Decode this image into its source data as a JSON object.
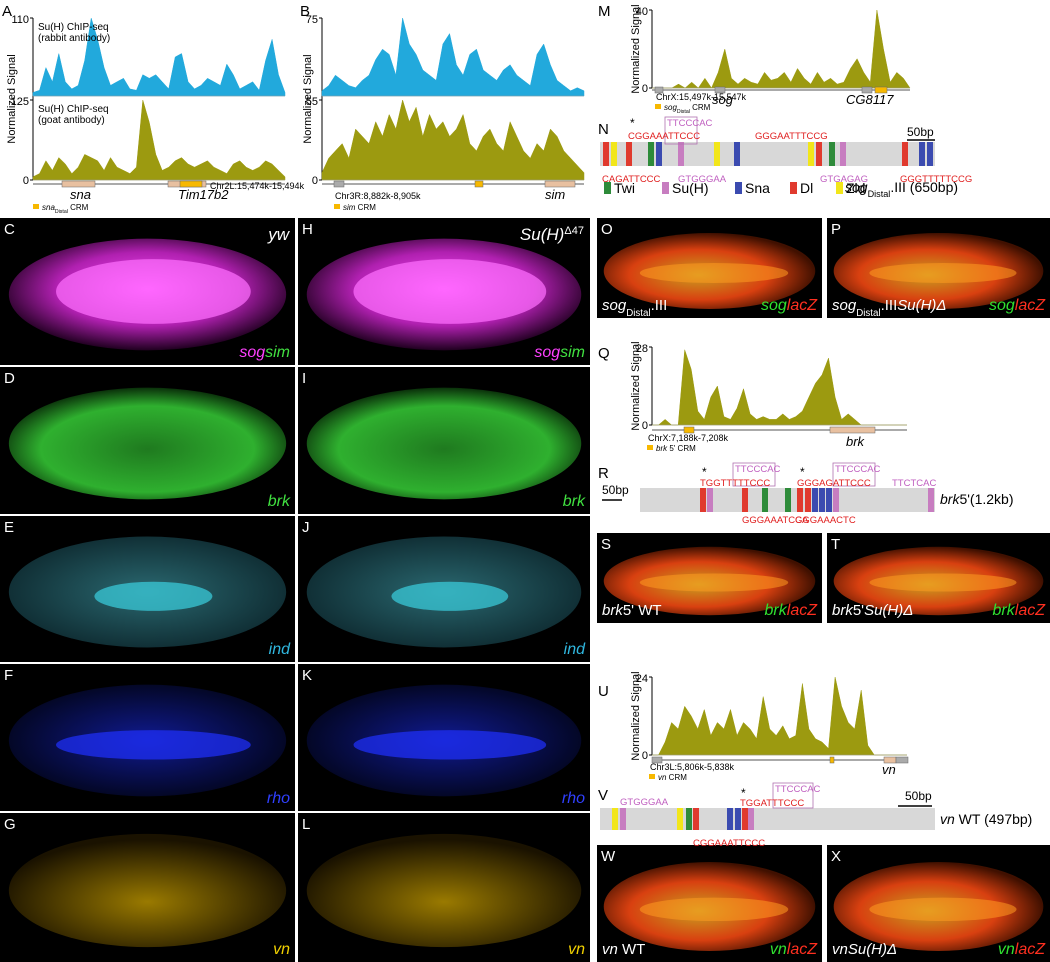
{
  "A": {
    "letter": "A",
    "ylabel": "Normalized Signal",
    "zero": 0,
    "tracks": [
      {
        "label": [
          "Su(H) ChIP-seq",
          "(rabbit antibody)"
        ],
        "ymax": 110,
        "color": "#22a9dc",
        "values": [
          5,
          8,
          40,
          20,
          60,
          20,
          10,
          15,
          50,
          110,
          80,
          40,
          15,
          20,
          25,
          10,
          8,
          30,
          25,
          30,
          20,
          10,
          55,
          60,
          20,
          10,
          15,
          25,
          20,
          15,
          45,
          30,
          10,
          15,
          20,
          8,
          50,
          80,
          30,
          5
        ]
      },
      {
        "label": [
          "Su(H) ChIP-seq",
          "(goat antibody)"
        ],
        "ymax": 125,
        "color": "#9c9a10",
        "values": [
          5,
          10,
          30,
          15,
          35,
          25,
          10,
          20,
          40,
          35,
          30,
          15,
          35,
          20,
          15,
          10,
          20,
          125,
          90,
          40,
          15,
          20,
          30,
          35,
          25,
          20,
          25,
          30,
          20,
          15,
          10,
          25,
          30,
          20,
          15,
          20,
          30,
          25,
          15,
          5
        ]
      }
    ],
    "genes": [
      "sna",
      "Tim17b2"
    ],
    "coord": "Chr2L:15,474k-15,494k",
    "crm": [
      "sna",
      "Distal",
      " CRM"
    ]
  },
  "B": {
    "letter": "B",
    "ylabel": "Normalized Signal",
    "zero": 0,
    "tracks": [
      {
        "ymax": 75,
        "color": "#22a9dc",
        "values": [
          5,
          10,
          20,
          15,
          10,
          8,
          15,
          20,
          35,
          45,
          40,
          20,
          75,
          50,
          40,
          25,
          20,
          15,
          50,
          60,
          30,
          20,
          40,
          45,
          25,
          20,
          15,
          25,
          30,
          20,
          15,
          10,
          40,
          50,
          30,
          15,
          10,
          5,
          8,
          5
        ]
      },
      {
        "ymax": 55,
        "color": "#9c9a10",
        "values": [
          5,
          15,
          20,
          25,
          15,
          35,
          30,
          25,
          40,
          30,
          45,
          35,
          55,
          40,
          50,
          30,
          45,
          35,
          40,
          30,
          35,
          45,
          25,
          20,
          30,
          35,
          25,
          20,
          40,
          30,
          20,
          15,
          25,
          20,
          35,
          30,
          20,
          15,
          10,
          5
        ]
      }
    ],
    "genes": [
      "sim"
    ],
    "coord": "Chr3R:8,882k-8,905k",
    "crm": [
      "sim",
      " CRM"
    ]
  },
  "M": {
    "letter": "M",
    "ylabel": "Normalized Signal",
    "zero": 0,
    "tracks": [
      {
        "ymax": 40,
        "color": "#9c9a10",
        "values": [
          0,
          0,
          0,
          0,
          2,
          0,
          3,
          0,
          5,
          0,
          8,
          20,
          5,
          2,
          5,
          3,
          2,
          8,
          4,
          5,
          8,
          3,
          10,
          5,
          2,
          8,
          3,
          5,
          2,
          3,
          10,
          15,
          8,
          3,
          40,
          20,
          3,
          8,
          5,
          0
        ]
      }
    ],
    "genes": [
      "sog",
      "CG8117"
    ],
    "coord": "ChrX:15,497k-15,547k",
    "crm": [
      "sog",
      "Distal",
      " CRM"
    ]
  },
  "Q": {
    "letter": "Q",
    "ylabel": "Normalized Signal",
    "zero": 0,
    "tracks": [
      {
        "ymax": 28,
        "color": "#9c9a10",
        "values": [
          0,
          0,
          2,
          0,
          0,
          27,
          20,
          5,
          2,
          10,
          14,
          3,
          2,
          6,
          13,
          4,
          2,
          3,
          2,
          2,
          4,
          2,
          3,
          5,
          10,
          15,
          18,
          24,
          10,
          2,
          4,
          2,
          0,
          0,
          0,
          0,
          0,
          0,
          0,
          0
        ]
      }
    ],
    "genes": [
      "brk"
    ],
    "coord": "ChrX:7,188k-7,208k",
    "crm": [
      "brk",
      " 5' CRM"
    ]
  },
  "U": {
    "letter": "U",
    "ylabel": "Normalized Signal",
    "zero": 0,
    "tracks": [
      {
        "ymax": 24,
        "color": "#9c9a10",
        "values": [
          0,
          0,
          4,
          10,
          8,
          15,
          12,
          8,
          14,
          6,
          10,
          8,
          14,
          6,
          10,
          8,
          5,
          18,
          8,
          6,
          9,
          5,
          6,
          22,
          8,
          5,
          4,
          2,
          24,
          15,
          10,
          8,
          20,
          3,
          0,
          0,
          0,
          0,
          0,
          0
        ]
      }
    ],
    "genes": [
      "vn"
    ],
    "coord": "Chr3L:5,806k-5,838k",
    "crm": [
      "vn",
      " CRM"
    ]
  },
  "N": {
    "letter": "N",
    "labels": [
      "*",
      "CGGAAATTCCC",
      "TTCCCAC",
      "GGGAATTTCCG",
      "50bp",
      "CAGATTCCC",
      "GTGGGAA",
      "GTGAGAG",
      "GGGTTTTTCCG"
    ],
    "legend": [
      "Twi",
      "Su(H)",
      "Sna",
      "Dl",
      "Zld"
    ],
    "name": [
      "sog",
      "Distal",
      ".III (650bp)"
    ]
  },
  "R": {
    "letter": "R",
    "labels": [
      "*",
      "TGGTTTTTCCC",
      "TTCCCAC",
      "*",
      "GGGAGATTCCC",
      "TTCCCAC",
      "TTCTCAC",
      "50bp",
      "GGGAAATCCA",
      "GGGAAACTC"
    ],
    "name": [
      "brk",
      "5'(1.2kb)"
    ]
  },
  "V": {
    "letter": "V",
    "labels": [
      "GTGGGAA",
      "*",
      "TGGATTTCCC",
      "TTCCCAC",
      "50bp",
      "CGGAAATTCCC"
    ],
    "name": [
      "vn",
      " WT (497bp)"
    ]
  },
  "embryos": [
    {
      "letter": "C",
      "tag": [
        "yw"
      ],
      "stain": [
        "sog",
        "sim"
      ]
    },
    {
      "letter": "H",
      "tag": [
        "Su(H)",
        "Δ47"
      ],
      "stain": [
        "sog",
        "sim"
      ]
    },
    {
      "letter": "D",
      "stain": [
        "brk"
      ]
    },
    {
      "letter": "I",
      "stain": [
        "brk"
      ]
    },
    {
      "letter": "E",
      "stain": [
        "ind"
      ]
    },
    {
      "letter": "J",
      "stain": [
        "ind"
      ]
    },
    {
      "letter": "F",
      "stain": [
        "rho"
      ]
    },
    {
      "letter": "K",
      "stain": [
        "rho"
      ]
    },
    {
      "letter": "G",
      "stain": [
        "vn"
      ]
    },
    {
      "letter": "L",
      "stain": [
        "vn"
      ]
    },
    {
      "letter": "O",
      "genotype": [
        "sog",
        "Distal",
        ".III"
      ],
      "stain": [
        "sog",
        "lacZ"
      ]
    },
    {
      "letter": "P",
      "genotype": [
        "sog",
        "Distal",
        ".III",
        "Su(H)Δ"
      ],
      "stain": [
        "sog",
        "lacZ"
      ]
    },
    {
      "letter": "S",
      "genotype": [
        "brk",
        "5' WT"
      ],
      "stain": [
        "brk",
        "lacZ"
      ]
    },
    {
      "letter": "T",
      "genotype": [
        "brk",
        "5'",
        "Su(H)Δ"
      ],
      "stain": [
        "brk",
        "lacZ"
      ]
    },
    {
      "letter": "W",
      "genotype": [
        "vn",
        " WT"
      ],
      "stain": [
        "vn",
        "lacZ"
      ]
    },
    {
      "letter": "X",
      "genotype": [
        "vn",
        "Su(H)Δ"
      ],
      "stain": [
        "vn",
        "lacZ"
      ]
    }
  ]
}
